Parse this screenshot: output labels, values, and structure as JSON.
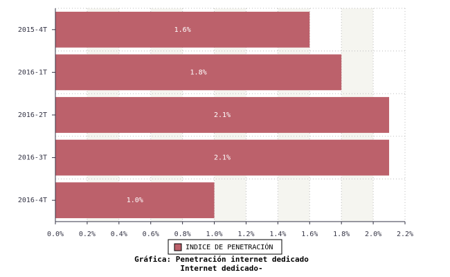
{
  "chart_data": {
    "type": "hbar",
    "title": "Gráfica: Penetración internet dedicado",
    "subtitle": "Internet dedicado-",
    "categories": [
      "2015-4T",
      "2016-1T",
      "2016-2T",
      "2016-3T",
      "2016-4T"
    ],
    "series": [
      {
        "name": "INDICE DE PENETRACIÓN",
        "color": "#bc616b",
        "values": [
          1.6,
          1.8,
          2.1,
          2.1,
          1.0
        ],
        "value_labels": [
          "1.6%",
          "1.8%",
          "2.1%",
          "2.1%",
          "1.0%"
        ]
      }
    ],
    "xlim": [
      0,
      2.2
    ],
    "xticks": [
      {
        "value": 0,
        "label": "0.0%"
      },
      {
        "value": 0.2,
        "label": "0.2%"
      },
      {
        "value": 0.4,
        "label": "0.4%"
      },
      {
        "value": 0.6,
        "label": "0.6%"
      },
      {
        "value": 0.8,
        "label": "0.8%"
      },
      {
        "value": 1.0,
        "label": "1.0%"
      },
      {
        "value": 1.2,
        "label": "1.2%"
      },
      {
        "value": 1.4,
        "label": "1.4%"
      },
      {
        "value": 1.6,
        "label": "1.6%"
      },
      {
        "value": 1.8,
        "label": "1.8%"
      },
      {
        "value": 2.0,
        "label": "2.0%"
      },
      {
        "value": 2.2,
        "label": "2.2%"
      }
    ],
    "grid": true
  }
}
